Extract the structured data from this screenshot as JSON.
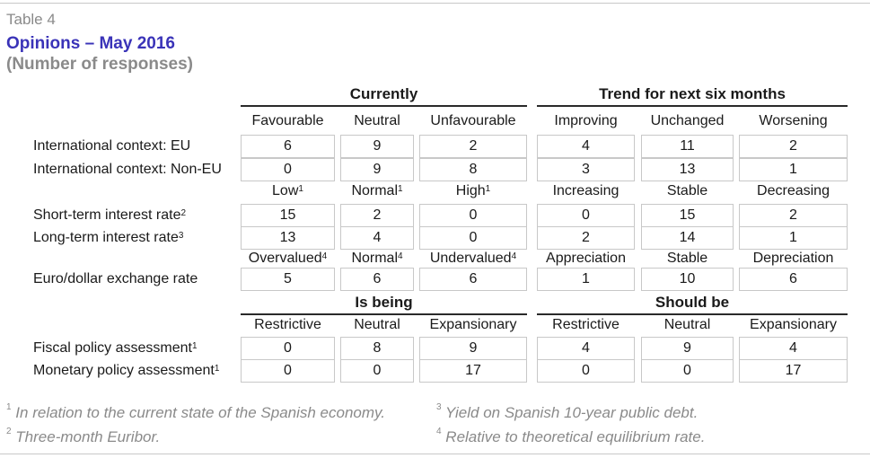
{
  "table_tag": "Table 4",
  "title": "Opinions – May 2016",
  "subtitle": "(Number of responses)",
  "groups": {
    "currently": "Currently",
    "trend": "Trend for next six months",
    "is_being": "Is being",
    "should_be": "Should be"
  },
  "headers": {
    "h1": [
      "Favourable",
      "Neutral",
      "Unfavourable",
      "Improving",
      "Unchanged",
      "Worsening"
    ],
    "h2": [
      {
        "text": "Low",
        "sup": "1"
      },
      {
        "text": "Normal",
        "sup": "1"
      },
      {
        "text": "High",
        "sup": "1"
      },
      {
        "text": "Increasing",
        "sup": ""
      },
      {
        "text": "Stable",
        "sup": ""
      },
      {
        "text": "Decreasing",
        "sup": ""
      }
    ],
    "h3": [
      {
        "text": "Overvalued",
        "sup": "4"
      },
      {
        "text": "Normal",
        "sup": "4"
      },
      {
        "text": "Undervalued",
        "sup": "4"
      },
      {
        "text": "Appreciation",
        "sup": ""
      },
      {
        "text": "Stable",
        "sup": ""
      },
      {
        "text": "Depreciation",
        "sup": ""
      }
    ],
    "h4": [
      "Restrictive",
      "Neutral",
      "Expansionary",
      "Restrictive",
      "Neutral",
      "Expansionary"
    ]
  },
  "rows": [
    {
      "label": "International context: EU",
      "sup": "",
      "values": [
        "6",
        "9",
        "2",
        "4",
        "11",
        "2"
      ]
    },
    {
      "label": "International context: Non-EU",
      "sup": "",
      "values": [
        "0",
        "9",
        "8",
        "3",
        "13",
        "1"
      ]
    },
    {
      "label": "Short-term interest rate",
      "sup": "2",
      "values": [
        "15",
        "2",
        "0",
        "0",
        "15",
        "2"
      ]
    },
    {
      "label": "Long-term interest rate",
      "sup": "3",
      "values": [
        "13",
        "4",
        "0",
        "2",
        "14",
        "1"
      ]
    },
    {
      "label": "Euro/dollar exchange rate",
      "sup": "",
      "values": [
        "5",
        "6",
        "6",
        "1",
        "10",
        "6"
      ]
    },
    {
      "label": "Fiscal policy assessment",
      "sup": "1",
      "values": [
        "0",
        "8",
        "9",
        "4",
        "9",
        "4"
      ]
    },
    {
      "label": "Monetary policy assessment",
      "sup": "1",
      "values": [
        "0",
        "0",
        "17",
        "0",
        "0",
        "17"
      ]
    }
  ],
  "notes": [
    {
      "num": "1",
      "text": "In relation to the current state of the Spanish economy."
    },
    {
      "num": "2",
      "text": "Three-month Euribor."
    },
    {
      "num": "3",
      "text": "Yield on Spanish 10-year public debt."
    },
    {
      "num": "4",
      "text": "Relative to theoretical equilibrium rate."
    }
  ]
}
